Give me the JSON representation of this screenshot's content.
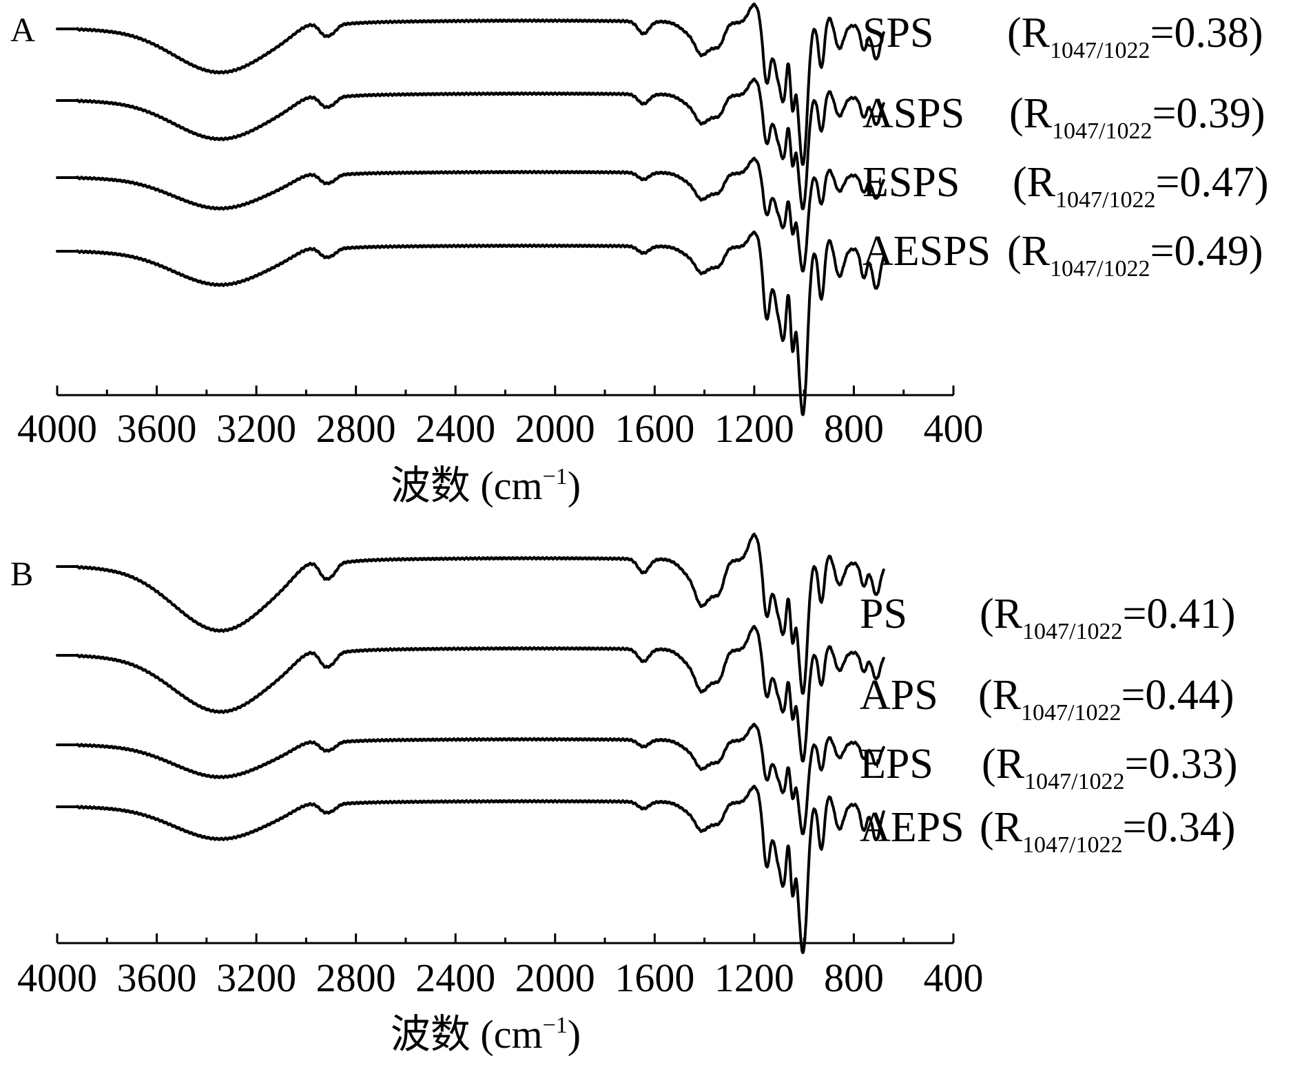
{
  "chart_data": [
    {
      "panel": "A",
      "type": "line",
      "xlabel": "波数 (cm",
      "xlabel_sup": "−1",
      "xlabel_close": ")",
      "xlim": [
        4000,
        400
      ],
      "x_ticks": [
        4000,
        3600,
        3200,
        2800,
        2400,
        2000,
        1600,
        1200,
        800,
        400
      ],
      "series": [
        {
          "name": "SPS",
          "ratio_label": "R",
          "ratio_sub": "1047/1022",
          "ratio_value": "=0.38"
        },
        {
          "name": "ASPS",
          "ratio_label": "R",
          "ratio_sub": "1047/1022",
          "ratio_value": "=0.39"
        },
        {
          "name": "ESPS",
          "ratio_label": "R",
          "ratio_sub": "1047/1022",
          "ratio_value": "=0.47"
        },
        {
          "name": "AESPS",
          "ratio_label": "R",
          "ratio_sub": "1047/1022",
          "ratio_value": "=0.49"
        }
      ]
    },
    {
      "panel": "B",
      "type": "line",
      "xlabel": "波数 (cm",
      "xlabel_sup": "−1",
      "xlabel_close": ")",
      "xlim": [
        4000,
        400
      ],
      "x_ticks": [
        4000,
        3600,
        3200,
        2800,
        2400,
        2000,
        1600,
        1200,
        800,
        400
      ],
      "series": [
        {
          "name": "PS",
          "ratio_label": "R",
          "ratio_sub": "1047/1022",
          "ratio_value": "=0.41"
        },
        {
          "name": "APS",
          "ratio_label": "R",
          "ratio_sub": "1047/1022",
          "ratio_value": "=0.44"
        },
        {
          "name": "EPS",
          "ratio_label": "R",
          "ratio_sub": "1047/1022",
          "ratio_value": "=0.33"
        },
        {
          "name": "AEPS",
          "ratio_label": "R",
          "ratio_sub": "1047/1022",
          "ratio_value": "=0.34"
        }
      ]
    }
  ]
}
